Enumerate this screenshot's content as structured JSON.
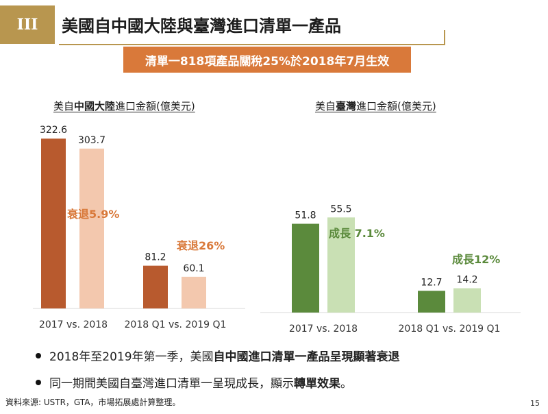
{
  "header": {
    "badge": "III",
    "title": "美國自中國大陸與臺灣進口清單一產品",
    "banner": "清單一818項產品關稅25%於2018年7月生效"
  },
  "colors": {
    "gold": "#b8964f",
    "orange_banner": "#d9793a",
    "china_dark": "#b85a2e",
    "china_light": "#f3c8ae",
    "china_annotation": "#d9793a",
    "taiwan_dark": "#5b8a3c",
    "taiwan_light": "#c9e0b4",
    "taiwan_annotation": "#5b8a3c"
  },
  "chart_data": [
    {
      "type": "bar",
      "title_parts": [
        "美自",
        "中國大陸",
        "進口金額(億美元)"
      ],
      "groups": [
        {
          "label": "2017 vs. 2018",
          "values": [
            322.6,
            303.7
          ],
          "value_labels": [
            "322.6",
            "303.7"
          ],
          "annotation": "衰退5.9%"
        },
        {
          "label": "2018 Q1 vs. 2019 Q1",
          "values": [
            81.2,
            60.1
          ],
          "value_labels": [
            "81.2",
            "60.1"
          ],
          "annotation": "衰退26%"
        }
      ]
    },
    {
      "type": "bar",
      "title_parts": [
        "美自",
        "臺灣",
        "進口金額(億美元)"
      ],
      "groups": [
        {
          "label": "2017 vs. 2018",
          "values": [
            51.8,
            55.5
          ],
          "value_labels": [
            "51.8",
            "55.5"
          ],
          "annotation": "成長 7.1%"
        },
        {
          "label": "2018 Q1 vs. 2019 Q1",
          "values": [
            12.7,
            14.2
          ],
          "value_labels": [
            "12.7",
            "14.2"
          ],
          "annotation": "成長12%"
        }
      ]
    }
  ],
  "bullets": [
    {
      "pre": "2018年至2019年第一季，美國",
      "bold": "自中國進口清單一產品呈現顯著衰退",
      "post": ""
    },
    {
      "pre": "同一期間美國自臺灣進口清單一呈現成長，顯示",
      "bold": "轉單效果",
      "post": "。"
    }
  ],
  "footer": {
    "source": "資料來源: USTR，GTA，市場拓展處計算整理。",
    "page": "15"
  }
}
